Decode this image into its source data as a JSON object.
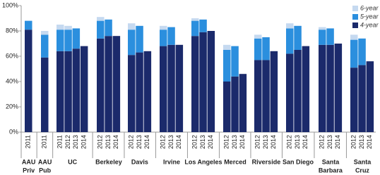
{
  "chart_data": {
    "type": "stacked-bar",
    "groups": [
      {
        "label": [
          "AAU",
          "Priv"
        ],
        "categories": [
          "2011"
        ]
      },
      {
        "label": [
          "AAU",
          "Pub"
        ],
        "categories": [
          "2011"
        ]
      },
      {
        "label": [
          "UC"
        ],
        "categories": [
          "2011",
          "2012",
          "2013",
          "2014"
        ]
      },
      {
        "label": [
          "Berkeley"
        ],
        "categories": [
          "2012",
          "2013",
          "2014"
        ]
      },
      {
        "label": [
          "Davis"
        ],
        "categories": [
          "2012",
          "2013",
          "2014"
        ]
      },
      {
        "label": [
          "Irvine"
        ],
        "categories": [
          "2012",
          "2013",
          "2014"
        ]
      },
      {
        "label": [
          "Los Angeles"
        ],
        "categories": [
          "2012",
          "2013",
          "2014"
        ]
      },
      {
        "label": [
          "Merced"
        ],
        "categories": [
          "2012",
          "2013",
          "2014"
        ]
      },
      {
        "label": [
          "Riverside"
        ],
        "categories": [
          "2012",
          "2013",
          "2014"
        ]
      },
      {
        "label": [
          "San Diego"
        ],
        "categories": [
          "2012",
          "2013",
          "2014"
        ]
      },
      {
        "label": [
          "Santa",
          "Barbara"
        ],
        "categories": [
          "2012",
          "2013",
          "2014"
        ]
      },
      {
        "label": [
          "Santa",
          "Cruz"
        ],
        "categories": [
          "2012",
          "2013",
          "2014"
        ]
      }
    ],
    "series": [
      {
        "name": "4-year",
        "color": "#1b2a6b",
        "values": [
          81,
          59,
          64,
          64,
          66,
          68,
          74,
          76,
          76,
          61,
          63,
          64,
          68,
          69,
          69,
          76,
          79,
          80,
          40,
          44,
          46,
          57,
          57,
          64,
          62,
          65,
          68,
          69,
          69,
          70,
          51,
          53,
          56
        ]
      },
      {
        "name": "5-year",
        "color": "#2b8fde",
        "values": [
          7,
          18,
          17,
          17,
          16,
          null,
          14,
          13,
          null,
          20,
          21,
          null,
          13,
          14,
          null,
          12,
          10,
          null,
          25,
          24,
          null,
          17,
          18,
          null,
          20,
          19,
          null,
          12,
          13,
          null,
          22,
          21,
          null
        ]
      },
      {
        "name": "6-year",
        "color": "#c5d9f0",
        "values": [
          null,
          3,
          4,
          3,
          null,
          null,
          3,
          null,
          null,
          5,
          null,
          null,
          3,
          null,
          null,
          2,
          null,
          null,
          4,
          null,
          null,
          3,
          null,
          null,
          4,
          null,
          null,
          2,
          null,
          null,
          4,
          null,
          null
        ]
      }
    ],
    "ylim": [
      0,
      100
    ],
    "yticks": [
      {
        "value": 0,
        "label": "0%"
      },
      {
        "value": 20,
        "label": "20%"
      },
      {
        "value": 40,
        "label": "40%"
      },
      {
        "value": 60,
        "label": "60%"
      },
      {
        "value": 80,
        "label": "80%"
      },
      {
        "value": 100,
        "label": "100%"
      }
    ],
    "legend": "top-right"
  }
}
